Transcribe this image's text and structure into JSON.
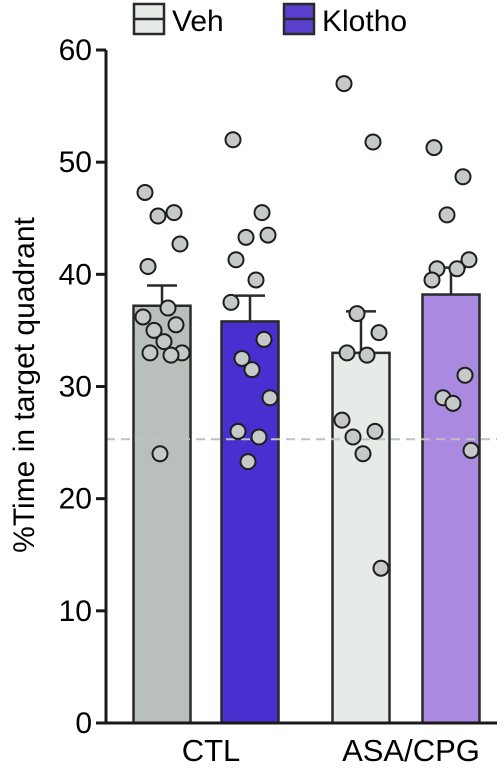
{
  "chart_data": {
    "type": "bar",
    "ylabel": "%Time in target quadrant",
    "ylim": [
      0,
      60
    ],
    "yticks": [
      "0",
      "10",
      "20",
      "30",
      "40",
      "50",
      "60"
    ],
    "groups": [
      "CTL",
      "ASA/CPG"
    ],
    "legend": [
      {
        "name": "Veh",
        "color": "#e6ebe7"
      },
      {
        "name": "Klotho",
        "color": "#5b3fcf"
      }
    ],
    "reference_line": 25.3,
    "bars": [
      {
        "group": "CTL",
        "series": "Veh",
        "mean": 37.2,
        "sem": 1.8,
        "color": "#b9bfbb",
        "points": [
          47.3,
          45.5,
          45.2,
          42.7,
          40.7,
          37.0,
          36.2,
          35.5,
          35.0,
          34.0,
          33.0,
          33.0,
          32.8,
          24.0
        ]
      },
      {
        "group": "CTL",
        "series": "Klotho",
        "mean": 35.8,
        "sem": 2.3,
        "color": "#4a2fd0",
        "points": [
          52.0,
          45.5,
          43.3,
          43.5,
          41.3,
          39.5,
          37.5,
          34.2,
          32.5,
          31.5,
          29.0,
          26.0,
          25.5,
          23.3
        ]
      },
      {
        "group": "ASA/CPG",
        "series": "Veh",
        "mean": 33.0,
        "sem": 3.7,
        "color": "#e6ebe7",
        "points": [
          57.0,
          51.8,
          36.5,
          34.8,
          33.0,
          32.8,
          27.0,
          26.0,
          25.5,
          24.0,
          13.8
        ]
      },
      {
        "group": "ASA/CPG",
        "series": "Klotho",
        "mean": 38.2,
        "sem": 2.4,
        "color": "#a98ae0",
        "points": [
          51.3,
          48.7,
          45.3,
          41.3,
          40.5,
          40.5,
          39.5,
          31.0,
          29.0,
          28.5,
          24.3
        ]
      }
    ]
  }
}
